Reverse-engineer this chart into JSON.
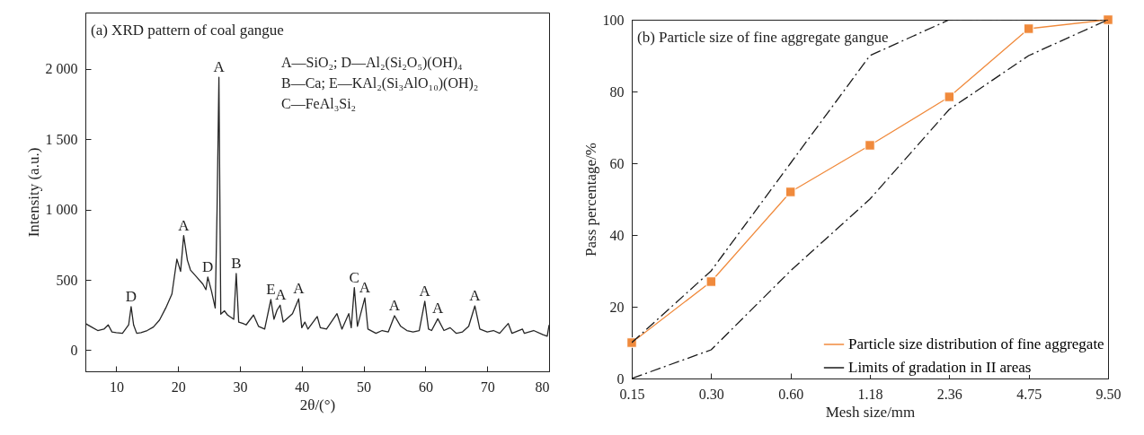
{
  "chart_data": [
    {
      "type": "line",
      "title": "(a) XRD pattern of coal gangue",
      "xlabel": "2θ/(°)",
      "ylabel": "Intensity (a.u.)",
      "xlim": [
        5,
        80
      ],
      "ylim": [
        -150,
        2400
      ],
      "xticks": [
        10,
        20,
        30,
        40,
        50,
        60,
        70,
        80
      ],
      "yticks": [
        0,
        500,
        {
          "value": 1000,
          "label": "1 000"
        },
        {
          "value": 1500,
          "label": "1 500"
        },
        {
          "value": 2000,
          "label": "2 000"
        }
      ],
      "grid": false,
      "legend": false,
      "marker": "none",
      "line_style": "solid",
      "series": [
        {
          "color": "#262626",
          "x": [
            5,
            6,
            7,
            8,
            8.7,
            9.3,
            10,
            11,
            12,
            12.4,
            12.8,
            13.3,
            14,
            15,
            16,
            17,
            18,
            19,
            19.8,
            20.4,
            20.9,
            21.5,
            22,
            23,
            24,
            24.5,
            24.8,
            25.4,
            26,
            26.3,
            26.6,
            26.9,
            27.5,
            28,
            29,
            29.4,
            29.8,
            30.5,
            31,
            32.2,
            33,
            34,
            35,
            35.5,
            36,
            36.5,
            37,
            38.5,
            39.5,
            40,
            40.5,
            41,
            42.5,
            43,
            44,
            45.7,
            46.5,
            47.6,
            48,
            48.5,
            49,
            50.2,
            50.7,
            52,
            53,
            54,
            55,
            56,
            57,
            58,
            59,
            59.9,
            60.5,
            61,
            62,
            63,
            64,
            65,
            66,
            67,
            68,
            68.8,
            70,
            71,
            72,
            73.4,
            74,
            75.7,
            76,
            77.5,
            79,
            79.7,
            80
          ],
          "values": [
            190,
            165,
            140,
            150,
            180,
            130,
            125,
            120,
            180,
            310,
            180,
            120,
            125,
            140,
            165,
            215,
            300,
            400,
            648,
            560,
            815,
            640,
            570,
            520,
            470,
            430,
            520,
            420,
            300,
            1000,
            1940,
            256,
            280,
            250,
            220,
            545,
            200,
            190,
            180,
            250,
            170,
            150,
            360,
            220,
            285,
            320,
            200,
            260,
            365,
            160,
            200,
            150,
            240,
            160,
            150,
            260,
            150,
            260,
            160,
            445,
            170,
            372,
            150,
            120,
            140,
            130,
            245,
            170,
            140,
            130,
            140,
            348,
            150,
            140,
            224,
            140,
            160,
            120,
            130,
            170,
            315,
            150,
            130,
            140,
            120,
            190,
            120,
            150,
            120,
            140,
            110,
            100,
            180
          ]
        }
      ],
      "annotations": [
        {
          "text": "D",
          "x": 12.4,
          "y": 310
        },
        {
          "text": "A",
          "x": 20.9,
          "y": 815
        },
        {
          "text": "D",
          "x": 24.8,
          "y": 520
        },
        {
          "text": "A",
          "x": 26.6,
          "y": 1940
        },
        {
          "text": "B",
          "x": 29.4,
          "y": 545
        },
        {
          "text": "E",
          "x": 35.0,
          "y": 360
        },
        {
          "text": "A",
          "x": 36.6,
          "y": 320
        },
        {
          "text": "A",
          "x": 39.5,
          "y": 365
        },
        {
          "text": "C",
          "x": 48.5,
          "y": 445
        },
        {
          "text": "A",
          "x": 50.2,
          "y": 372
        },
        {
          "text": "A",
          "x": 55.0,
          "y": 245
        },
        {
          "text": "A",
          "x": 59.9,
          "y": 348
        },
        {
          "text": "A",
          "x": 62.0,
          "y": 224
        },
        {
          "text": "A",
          "x": 68.0,
          "y": 315
        },
        "A—SiO₂; D—Al₂(Si₂O₅)(OH)₄",
        "B—Ca; E—KAl₂(Si₃AlO₁₀)(OH)₂",
        "C—FeAl₃Si₂"
      ]
    },
    {
      "type": "line",
      "title": "(b) Particle size of fine aggregate gangue",
      "xlabel": "Mesh size/mm",
      "ylabel": "Pass percentage/%",
      "categories": [
        "0.15",
        "0.30",
        "0.60",
        "1.18",
        "2.36",
        "4.75",
        "9.50"
      ],
      "ylim": [
        0,
        100
      ],
      "yticks": [
        0,
        20,
        40,
        60,
        80,
        100
      ],
      "grid": false,
      "legend": "bottom right",
      "series": [
        {
          "name": "Particle size distribution of fine aggregate",
          "color": "#f08a3c",
          "marker": "square",
          "line_style": "solid",
          "values": [
            10,
            27,
            52,
            65,
            78.5,
            97.5,
            100
          ]
        },
        {
          "name": "Limits of gradation in II areas",
          "color": "#1a1a1a",
          "marker": "none",
          "line_style": "dashed",
          "values": [
            10,
            30,
            60,
            90,
            100,
            100,
            100
          ]
        },
        {
          "color": "#1a1a1a",
          "marker": "none",
          "line_style": "dashed",
          "values": [
            0,
            8,
            30,
            50,
            75,
            90,
            100
          ]
        }
      ]
    }
  ]
}
